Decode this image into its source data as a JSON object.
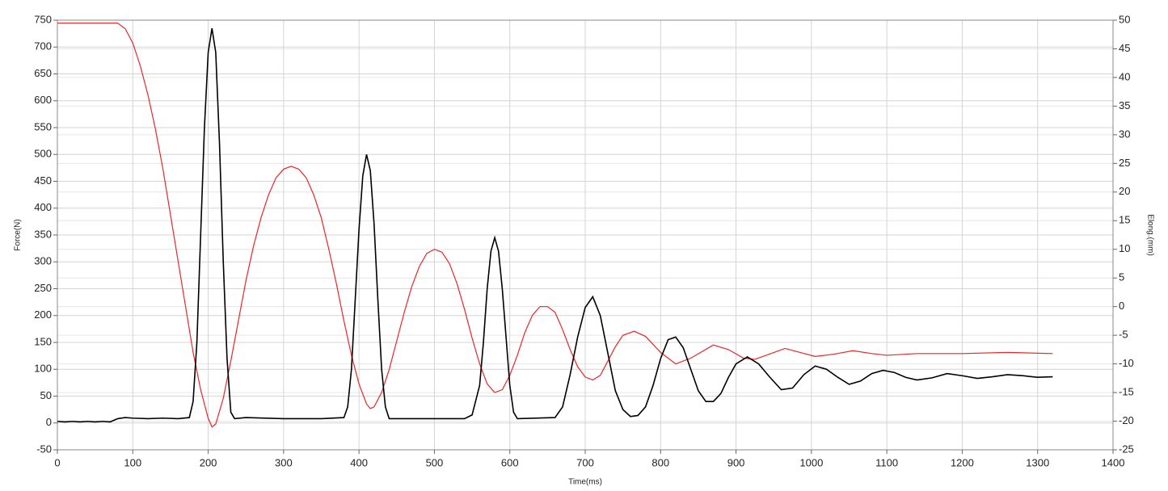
{
  "chart_data": {
    "type": "line",
    "xlabel": "Time(ms)",
    "ylabel": "Force(N)",
    "y2label": "Elong.(mm)",
    "xlim": [
      0,
      1400
    ],
    "xticks": [
      0,
      100,
      200,
      300,
      400,
      500,
      600,
      700,
      800,
      900,
      1000,
      1100,
      1200,
      1300,
      1400
    ],
    "ylim": [
      -50,
      750
    ],
    "yticks": [
      -50,
      0,
      50,
      100,
      150,
      200,
      250,
      300,
      350,
      400,
      450,
      500,
      550,
      600,
      650,
      700,
      750
    ],
    "y2lim": [
      -25,
      50
    ],
    "y2ticks": [
      -25,
      -20,
      -15,
      -10,
      -5,
      0,
      5,
      10,
      15,
      20,
      25,
      30,
      35,
      40,
      45,
      50
    ],
    "grid": true,
    "series": [
      {
        "name": "Force",
        "color": "#000000",
        "x": [
          0,
          10,
          20,
          30,
          40,
          50,
          60,
          70,
          80,
          90,
          100,
          120,
          140,
          160,
          175,
          180,
          185,
          190,
          195,
          200,
          205,
          210,
          215,
          220,
          225,
          230,
          235,
          250,
          300,
          350,
          380,
          385,
          390,
          395,
          400,
          405,
          410,
          415,
          420,
          425,
          430,
          435,
          440,
          500,
          540,
          550,
          560,
          565,
          570,
          575,
          580,
          585,
          590,
          595,
          600,
          605,
          610,
          660,
          670,
          680,
          690,
          700,
          710,
          720,
          730,
          740,
          750,
          760,
          770,
          780,
          790,
          800,
          810,
          820,
          830,
          840,
          850,
          860,
          870,
          880,
          890,
          900,
          915,
          930,
          945,
          960,
          975,
          990,
          1005,
          1020,
          1035,
          1050,
          1065,
          1080,
          1095,
          1110,
          1125,
          1140,
          1160,
          1180,
          1200,
          1220,
          1240,
          1260,
          1280,
          1300,
          1320
        ],
        "values": [
          3,
          2,
          3,
          2,
          3,
          2,
          3,
          2,
          8,
          10,
          9,
          8,
          9,
          8,
          10,
          40,
          150,
          350,
          550,
          690,
          735,
          690,
          520,
          300,
          120,
          20,
          8,
          10,
          8,
          8,
          10,
          30,
          100,
          230,
          360,
          460,
          500,
          470,
          370,
          230,
          100,
          30,
          8,
          8,
          8,
          15,
          70,
          150,
          250,
          320,
          345,
          320,
          250,
          160,
          70,
          20,
          8,
          10,
          30,
          90,
          160,
          215,
          235,
          200,
          130,
          60,
          25,
          12,
          14,
          30,
          70,
          120,
          155,
          160,
          140,
          100,
          60,
          40,
          40,
          55,
          85,
          110,
          123,
          110,
          85,
          62,
          65,
          90,
          106,
          100,
          85,
          72,
          78,
          92,
          98,
          94,
          85,
          80,
          84,
          92,
          88,
          83,
          86,
          90,
          88,
          85,
          86
        ]
      },
      {
        "name": "Elong",
        "color": "#e8262b",
        "axis": "y2",
        "x": [
          0,
          80,
          90,
          100,
          110,
          120,
          130,
          140,
          150,
          160,
          170,
          180,
          190,
          200,
          205,
          210,
          220,
          230,
          240,
          250,
          260,
          270,
          280,
          290,
          300,
          310,
          320,
          330,
          340,
          350,
          360,
          370,
          380,
          390,
          400,
          410,
          415,
          420,
          430,
          440,
          450,
          460,
          470,
          480,
          490,
          500,
          510,
          520,
          530,
          540,
          550,
          560,
          570,
          580,
          590,
          600,
          610,
          620,
          630,
          640,
          650,
          660,
          670,
          680,
          690,
          700,
          710,
          720,
          730,
          740,
          750,
          765,
          780,
          800,
          820,
          840,
          870,
          890,
          910,
          925,
          940,
          965,
          985,
          1005,
          1030,
          1055,
          1080,
          1100,
          1140,
          1200,
          1260,
          1320
        ],
        "values": [
          49.5,
          49.5,
          48.5,
          46,
          42,
          37,
          31,
          24,
          16,
          8,
          0,
          -8,
          -14.5,
          -19.5,
          -21,
          -20.5,
          -16,
          -9.5,
          -2.5,
          4.5,
          10.5,
          15.5,
          19.5,
          22.5,
          24,
          24.5,
          24,
          22.5,
          19.5,
          15.5,
          10,
          4,
          -2.5,
          -8.5,
          -13.5,
          -17,
          -17.8,
          -17.5,
          -15,
          -11,
          -6,
          -1,
          3.5,
          7,
          9.3,
          10,
          9.5,
          7.5,
          4,
          -0.5,
          -5.5,
          -10,
          -13.5,
          -15,
          -14.5,
          -12,
          -8.5,
          -4.5,
          -1.5,
          0,
          0,
          -1,
          -4,
          -7.5,
          -10.5,
          -12.3,
          -12.8,
          -12,
          -9.5,
          -7,
          -5,
          -4.3,
          -5.2,
          -8,
          -10,
          -9,
          -6.7,
          -7.5,
          -9,
          -9.2,
          -8.5,
          -7.3,
          -8,
          -8.7,
          -8.3,
          -7.7,
          -8.2,
          -8.5,
          -8.2,
          -8.2,
          -8,
          -8.2
        ]
      }
    ]
  }
}
